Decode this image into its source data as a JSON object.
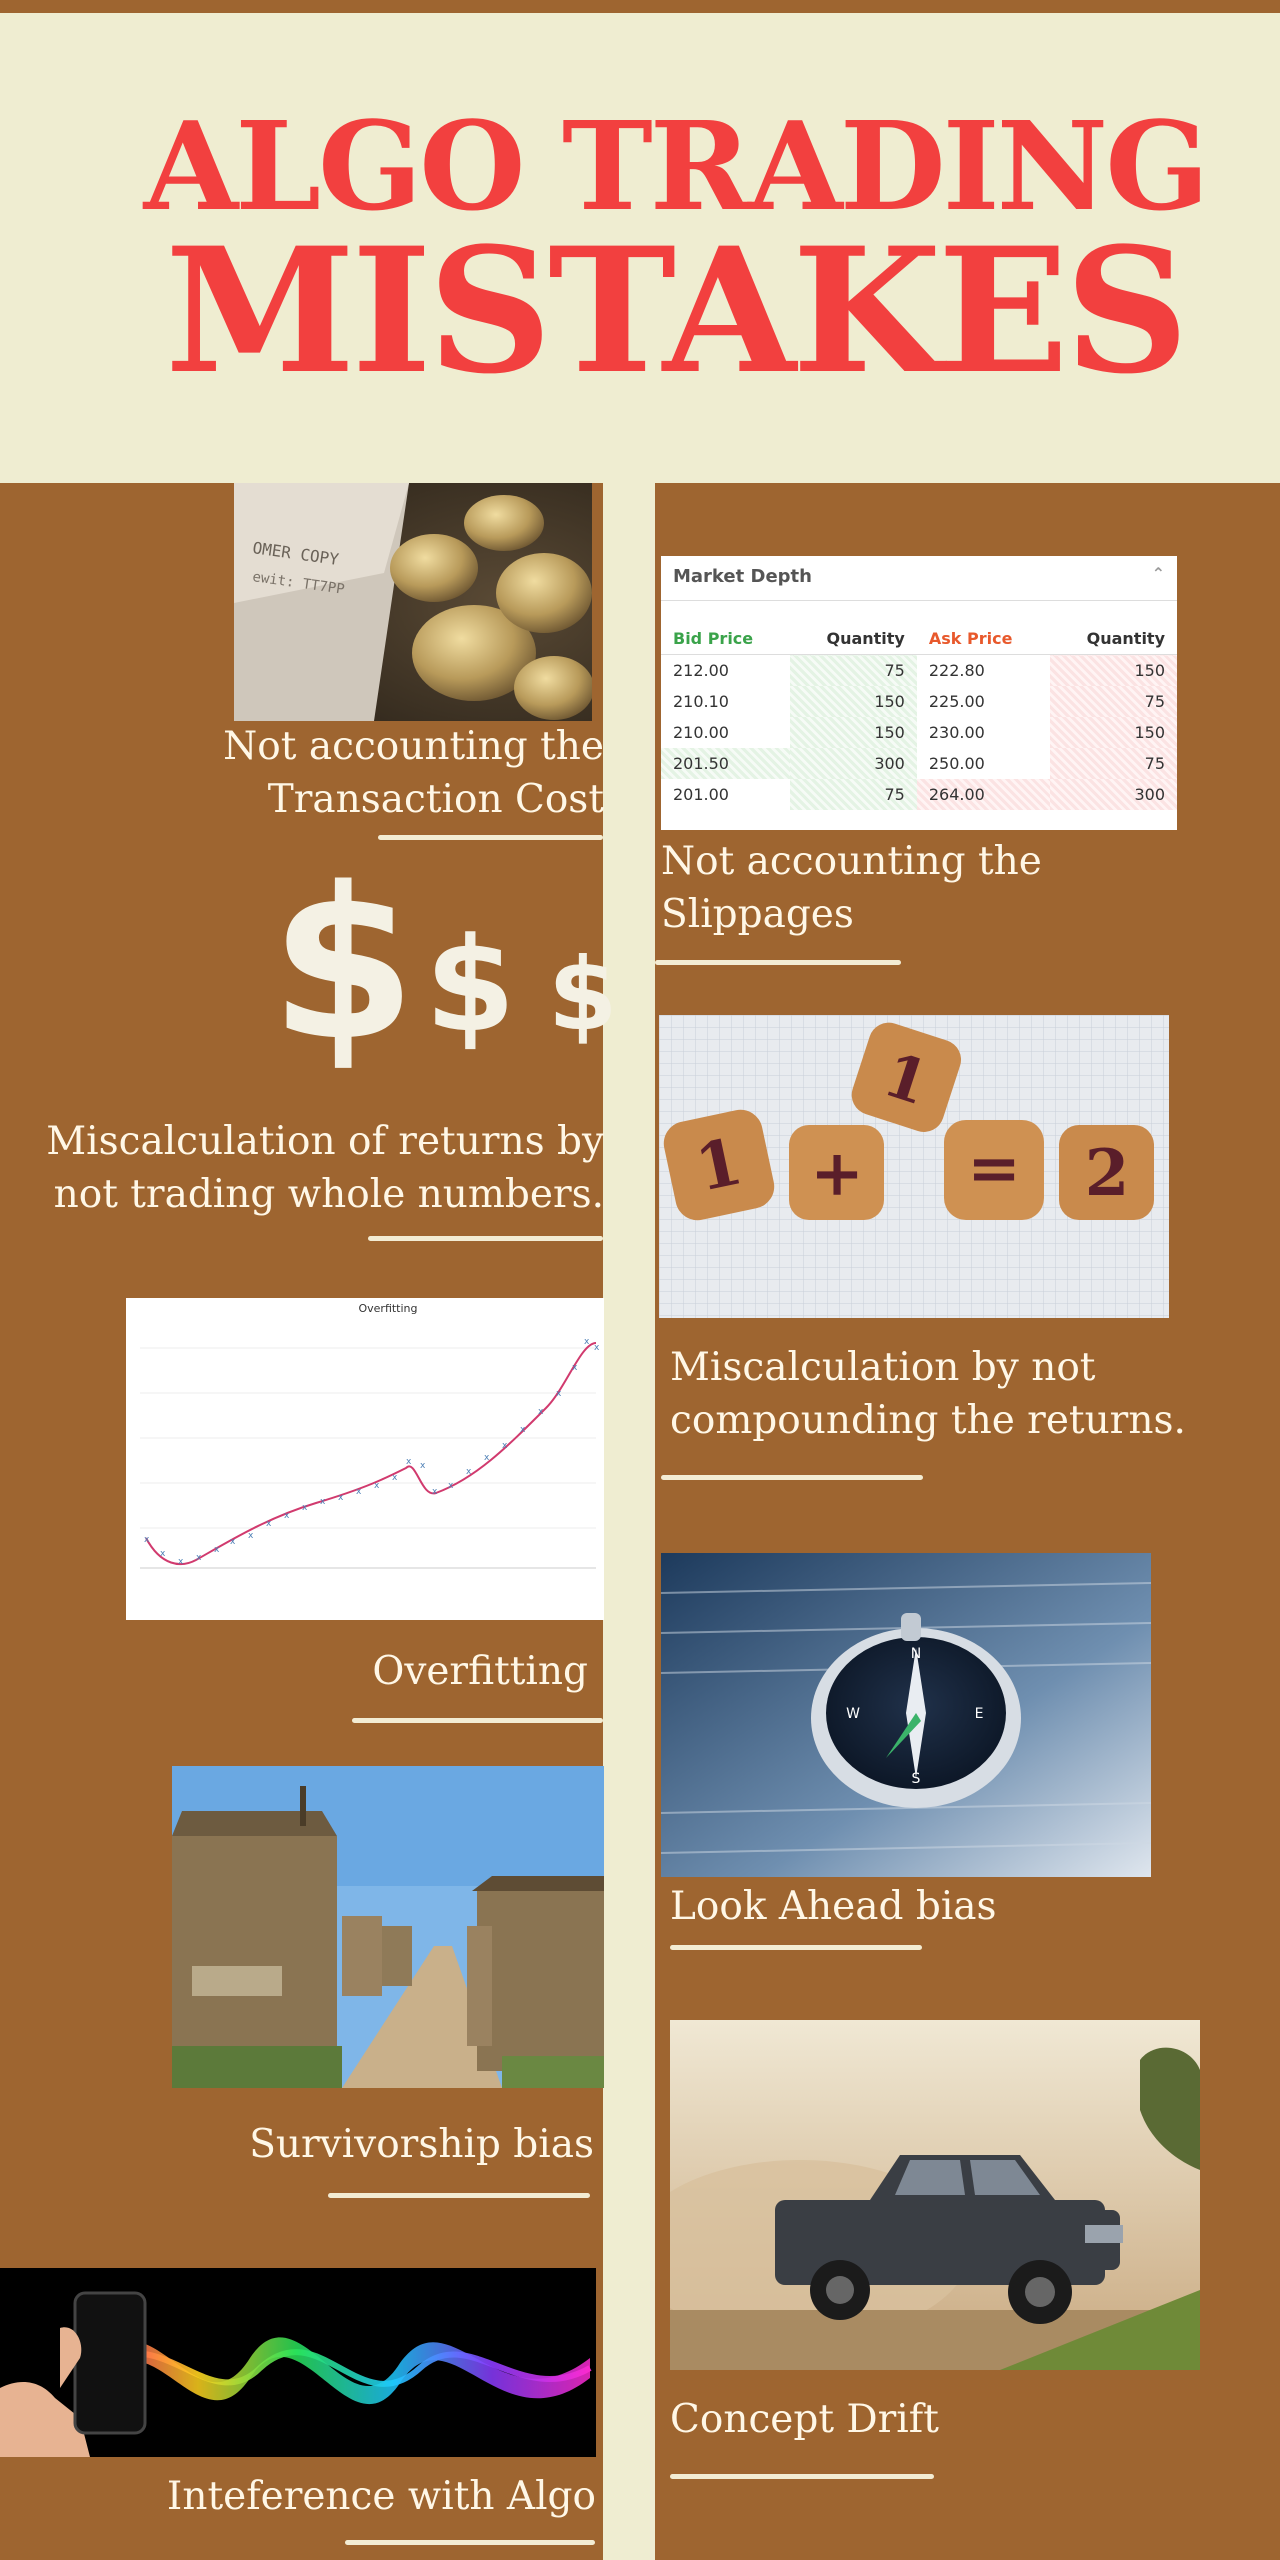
{
  "header": {
    "title_line1": "ALGO TRADING",
    "title_line2": "MISTAKES"
  },
  "colors": {
    "background": "#9e6530",
    "header_bg": "#efedd1",
    "title": "#f2403f",
    "caption": "#fff7e6"
  },
  "left": {
    "transaction_cost": {
      "caption": "Not accounting the Transaction Cost",
      "icon": "coins-receipt-photo"
    },
    "whole_numbers": {
      "caption": "Miscalculation of returns by not trading whole numbers.",
      "symbols": [
        "$",
        "$",
        "$"
      ]
    },
    "overfitting": {
      "caption": "Overfitting",
      "chart_title": "Overfitting"
    },
    "survivorship": {
      "caption": "Survivorship bias",
      "icon": "cemetery-photo"
    },
    "interference": {
      "caption": "Inteference with Algo",
      "icon": "phone-waves-photo"
    }
  },
  "right": {
    "slippages": {
      "caption": "Not accounting the Slippages"
    },
    "compounding": {
      "caption": "Miscalculation by not compounding the returns.",
      "cookies": [
        "1",
        "+",
        "1",
        "=",
        "2"
      ]
    },
    "look_ahead": {
      "caption": "Look Ahead bias",
      "icon": "compass-photo"
    },
    "concept_drift": {
      "caption": "Concept Drift",
      "icon": "pickup-truck-photo"
    }
  },
  "market_depth": {
    "title": "Market Depth",
    "headers": [
      "Bid Price",
      "Quantity",
      "Ask Price",
      "Quantity"
    ],
    "rows": [
      [
        "212.00",
        "75",
        "222.80",
        "150"
      ],
      [
        "210.10",
        "150",
        "225.00",
        "75"
      ],
      [
        "210.00",
        "150",
        "230.00",
        "150"
      ],
      [
        "201.50",
        "300",
        "250.00",
        "75"
      ],
      [
        "201.00",
        "75",
        "264.00",
        "300"
      ]
    ]
  }
}
